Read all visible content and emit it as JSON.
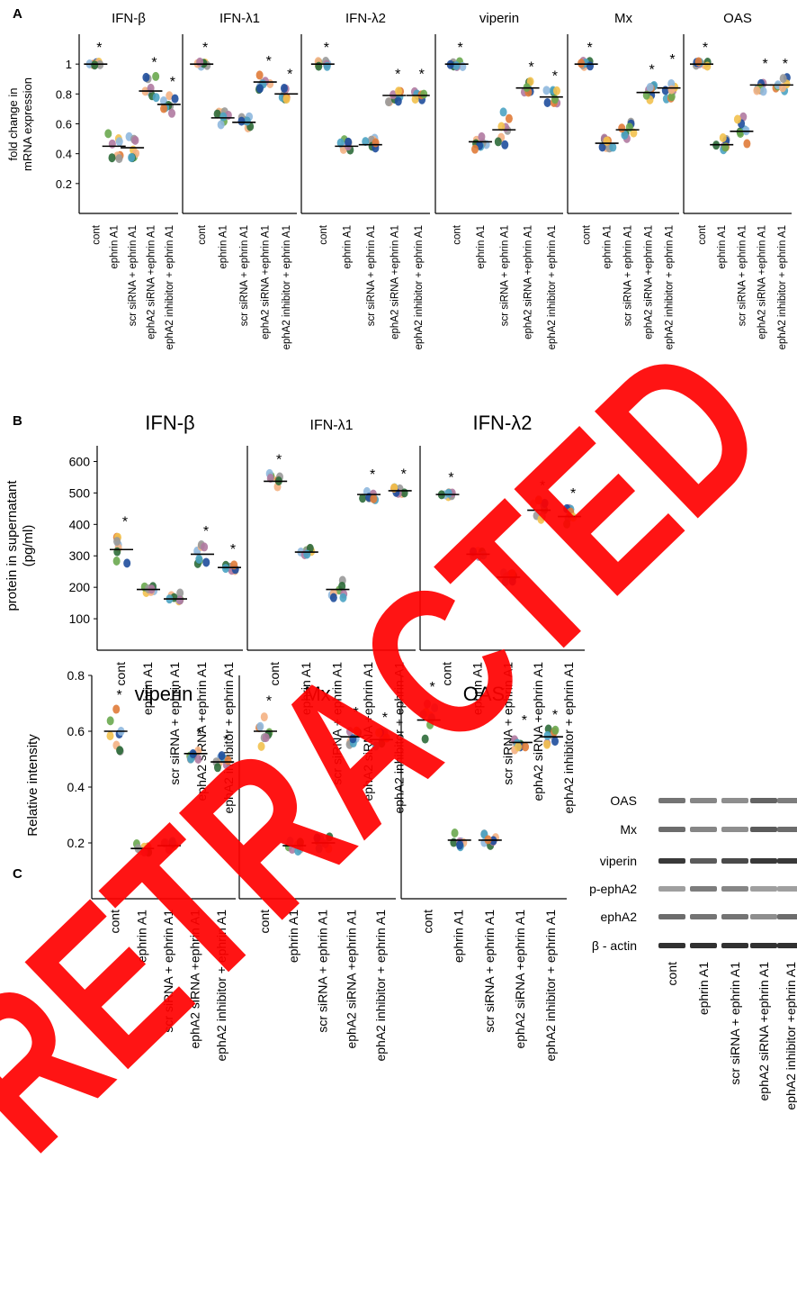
{
  "panel_labels": [
    "A",
    "B",
    "C"
  ],
  "ylabels": {
    "A": [
      "fold change in",
      "mRNA expression"
    ],
    "B": [
      "protein in supernatant",
      "(pg/ml)"
    ],
    "C": [
      "Relative intensity"
    ]
  },
  "x_tick_sets": {
    "A": [
      [
        "cont",
        "ephrin A1",
        "scr siRNA + ephrin A1",
        "ephA2 siRNA +ephrin A1",
        "ephA2 inhibitor + ephrin A1"
      ],
      [
        "cont",
        "ephrin A1",
        "scr siRNA + ephrin A1",
        "ephA2 siRNA +ephrin A1",
        "ephA2 inhibitor + ephrin A1"
      ],
      [
        "cont",
        "ephrin A1",
        "scr siRNA + ephrin A1",
        "ephA2 siRNA +ephrin A1",
        "ephA2 inhibitor + ephrin A1"
      ],
      [
        "cont",
        "ephrin A1",
        "scr siRNA + ephrin A1",
        "ephA2 siRNA +ephrin A1",
        "ephA2 inhibitor + ephrin A1"
      ],
      [
        "cont",
        "ephrin A1",
        "scr siRNA + ephrin A1",
        "ephA2 siRNA +ephrin A1",
        "ephA2 inhibitor + ephrin A1"
      ],
      [
        "cont",
        "ephrin A1",
        "scr siRNA + ephrin A1",
        "ephA2 siRNA +ephrin A1",
        "ephA2 inhibitor + ephrin A1"
      ]
    ],
    "B": [
      [
        "cont",
        "ephrin A1",
        "scr siRNA + ephrin A1",
        "ephA2 siRNA +ephrin A1",
        "ephA2 inhibitor + ephrin A1"
      ],
      [
        "cont",
        "ephrin A1",
        "scr siRNA + ephrin A1",
        "ephA2 siRNA +ephrin A1",
        "ephA2 inhibitor + ephrin A1"
      ],
      [
        "cont",
        "ephrin A1",
        "scr siRNA + ephrin A1",
        "ephA2 siRNA +ephrin A1",
        "ephA2 inhibitor + ephrin A1"
      ]
    ],
    "C": [
      [
        "cont",
        "ephrin A1",
        "scr siRNA + ephrin A1",
        "ephA2 siRNA +ephrin A1",
        "ephA2 inhibitor + ephrin A1"
      ],
      [
        "cont",
        "ephrin A1",
        "scr siRNA + ephrin A1",
        "ephA2 siRNA +ephrin A1",
        "ephA2 inhibitor + ephrin A1"
      ],
      [
        "cont",
        "ephrin A1",
        "scr siRNA + ephrin A1",
        "ephA2 siRNA +ephrin A1",
        "ephA2 inhibitor + ephrin A1"
      ]
    ]
  },
  "significance_marker": "*",
  "dot_colors": [
    "#1f4e9c",
    "#e07b39",
    "#f2c14e",
    "#6aa84f",
    "#8fb8de",
    "#f4b183",
    "#999999",
    "#2e6b3a",
    "#b07aa1",
    "#4ba3c3"
  ],
  "chart_data": [
    {
      "type": "scatter",
      "panel": "A",
      "title": "IFN-β",
      "ylabel": "fold change in mRNA expression",
      "ylim": [
        0,
        1.2
      ],
      "yticks": [
        0.2,
        0.4,
        0.6,
        0.8,
        1
      ],
      "categories": [
        "cont",
        "ephrin A1",
        "scr siRNA + ephrin A1",
        "ephA2 siRNA +ephrin A1",
        "ephA2 inhibitor + ephrin A1"
      ],
      "means": [
        1.0,
        0.45,
        0.44,
        0.82,
        0.73
      ],
      "spread": [
        0.02,
        0.12,
        0.08,
        0.1,
        0.06
      ],
      "significant": [
        true,
        false,
        false,
        true,
        true
      ]
    },
    {
      "type": "scatter",
      "panel": "A",
      "title": "IFN-λ1",
      "ylim": [
        0,
        1.2
      ],
      "categories": [
        "cont",
        "ephrin A1",
        "scr siRNA + ephrin A1",
        "ephA2 siRNA +ephrin A1",
        "ephA2 inhibitor + ephrin A1"
      ],
      "means": [
        1.0,
        0.64,
        0.61,
        0.88,
        0.8
      ],
      "spread": [
        0.02,
        0.05,
        0.04,
        0.05,
        0.04
      ],
      "significant": [
        true,
        false,
        false,
        true,
        true
      ]
    },
    {
      "type": "scatter",
      "panel": "A",
      "title": "IFN-λ2",
      "ylim": [
        0,
        1.2
      ],
      "categories": [
        "cont",
        "ephrin A1",
        "scr siRNA + ephrin A1",
        "ephA2 siRNA +ephrin A1",
        "ephA2 inhibitor + ephrin A1"
      ],
      "means": [
        1.0,
        0.45,
        0.46,
        0.79,
        0.79
      ],
      "spread": [
        0.02,
        0.05,
        0.05,
        0.05,
        0.05
      ],
      "significant": [
        true,
        false,
        false,
        true,
        true
      ]
    },
    {
      "type": "scatter",
      "panel": "A",
      "title": "viperin",
      "ylim": [
        0,
        1.2
      ],
      "categories": [
        "cont",
        "ephrin A1",
        "scr siRNA + ephrin A1",
        "ephA2 siRNA +ephrin A1",
        "ephA2 inhibitor + ephrin A1"
      ],
      "means": [
        1.0,
        0.48,
        0.56,
        0.84,
        0.78
      ],
      "spread": [
        0.02,
        0.07,
        0.12,
        0.05,
        0.05
      ],
      "significant": [
        true,
        false,
        false,
        true,
        true
      ]
    },
    {
      "type": "scatter",
      "panel": "A",
      "title": "Mx",
      "ylim": [
        0,
        1.2
      ],
      "categories": [
        "cont",
        "ephrin A1",
        "scr siRNA + ephrin A1",
        "ephA2 siRNA +ephrin A1",
        "ephA2 inhibitor + ephrin A1"
      ],
      "means": [
        1.0,
        0.47,
        0.56,
        0.81,
        0.84
      ],
      "spread": [
        0.02,
        0.04,
        0.1,
        0.06,
        0.1
      ],
      "significant": [
        true,
        false,
        false,
        true,
        true
      ]
    },
    {
      "type": "scatter",
      "panel": "A",
      "title": "OAS",
      "ylim": [
        0,
        1.2
      ],
      "categories": [
        "cont",
        "ephrin A1",
        "scr siRNA + ephrin A1",
        "ephA2 siRNA +ephrin A1",
        "ephA2 inhibitor + ephrin A1"
      ],
      "means": [
        1.0,
        0.46,
        0.55,
        0.86,
        0.86
      ],
      "spread": [
        0.02,
        0.05,
        0.1,
        0.05,
        0.05
      ],
      "significant": [
        true,
        false,
        false,
        true,
        true
      ]
    },
    {
      "type": "scatter",
      "panel": "B",
      "title": "IFN-β",
      "ylabel": "protein in supernatant (pg/ml)",
      "ylim": [
        0,
        650
      ],
      "yticks": [
        100,
        200,
        300,
        400,
        500,
        600
      ],
      "categories": [
        "cont",
        "ephrin A1",
        "scr siRNA + ephrin A1",
        "ephA2 siRNA +ephrin A1",
        "ephA2 inhibitor + ephrin A1"
      ],
      "means": [
        320,
        193,
        163,
        305,
        263
      ],
      "spread": [
        45,
        12,
        20,
        30,
        15
      ],
      "significant": [
        true,
        false,
        false,
        true,
        true
      ]
    },
    {
      "type": "scatter",
      "panel": "B",
      "title": "IFN-λ1",
      "ylim": [
        0,
        650
      ],
      "categories": [
        "cont",
        "ephrin A1",
        "scr siRNA + ephrin A1",
        "ephA2 siRNA +ephrin A1",
        "ephA2 inhibitor + ephrin A1"
      ],
      "means": [
        537,
        312,
        193,
        495,
        507
      ],
      "spread": [
        25,
        12,
        30,
        20,
        10
      ],
      "significant": [
        true,
        false,
        false,
        true,
        true
      ]
    },
    {
      "type": "scatter",
      "panel": "B",
      "title": "IFN-λ2",
      "ylim": [
        0,
        650
      ],
      "categories": [
        "cont",
        "ephrin A1",
        "scr siRNA + ephrin A1",
        "ephA2 siRNA +ephrin A1",
        "ephA2 inhibitor + ephrin A1"
      ],
      "means": [
        495,
        305,
        232,
        445,
        425
      ],
      "spread": [
        10,
        15,
        15,
        35,
        30
      ],
      "significant": [
        true,
        false,
        false,
        true,
        true
      ]
    },
    {
      "type": "scatter",
      "panel": "C",
      "title": "viperin",
      "ylabel": "Relative intensity",
      "ylim": [
        0,
        0.8
      ],
      "yticks": [
        0.2,
        0.4,
        0.6,
        0.8
      ],
      "categories": [
        "cont",
        "ephrin A1",
        "scr siRNA + ephrin A1",
        "ephA2 siRNA +ephrin A1",
        "ephA2 inhibitor + ephrin A1"
      ],
      "means": [
        0.6,
        0.18,
        0.19,
        0.52,
        0.49
      ],
      "spread": [
        0.08,
        0.02,
        0.02,
        0.02,
        0.03
      ],
      "significant": [
        true,
        false,
        false,
        true,
        true
      ]
    },
    {
      "type": "scatter",
      "panel": "C",
      "title": "Mx",
      "ylim": [
        0,
        0.8
      ],
      "categories": [
        "cont",
        "ephrin A1",
        "scr siRNA + ephrin A1",
        "ephA2 siRNA +ephrin A1",
        "ephA2 inhibitor + ephrin A1"
      ],
      "means": [
        0.6,
        0.19,
        0.2,
        0.58,
        0.57
      ],
      "spread": [
        0.06,
        0.02,
        0.03,
        0.04,
        0.03
      ],
      "significant": [
        true,
        false,
        false,
        true,
        true
      ]
    },
    {
      "type": "scatter",
      "panel": "C",
      "title": "OAS",
      "ylim": [
        0,
        0.8
      ],
      "categories": [
        "cont",
        "ephrin A1",
        "scr siRNA + ephrin A1",
        "ephA2 siRNA +ephrin A1",
        "ephA2 inhibitor + ephrin A1"
      ],
      "means": [
        0.64,
        0.21,
        0.21,
        0.56,
        0.58
      ],
      "spread": [
        0.07,
        0.03,
        0.03,
        0.03,
        0.03
      ],
      "significant": [
        true,
        false,
        false,
        true,
        true
      ]
    }
  ],
  "blot": {
    "bands": [
      "OAS",
      "Mx",
      "viperin",
      "p-ephA2",
      "ephA2",
      "β - actin"
    ],
    "lanes": [
      "cont",
      "ephrin A1",
      "scr siRNA + ephrin A1",
      "ephA2 siRNA +ephrin A1",
      "ephA2 inhibitor +ephrin A1"
    ],
    "band_intensity": [
      [
        0.55,
        0.45,
        0.4,
        0.65,
        0.5
      ],
      [
        0.6,
        0.45,
        0.4,
        0.7,
        0.6
      ],
      [
        0.9,
        0.7,
        0.8,
        0.9,
        0.9
      ],
      [
        0.3,
        0.5,
        0.45,
        0.3,
        0.3
      ],
      [
        0.6,
        0.55,
        0.55,
        0.4,
        0.6
      ],
      [
        0.95,
        0.95,
        0.95,
        0.95,
        0.95
      ]
    ]
  },
  "watermark": {
    "text": "RETRACTED",
    "color": "#ff0000"
  }
}
